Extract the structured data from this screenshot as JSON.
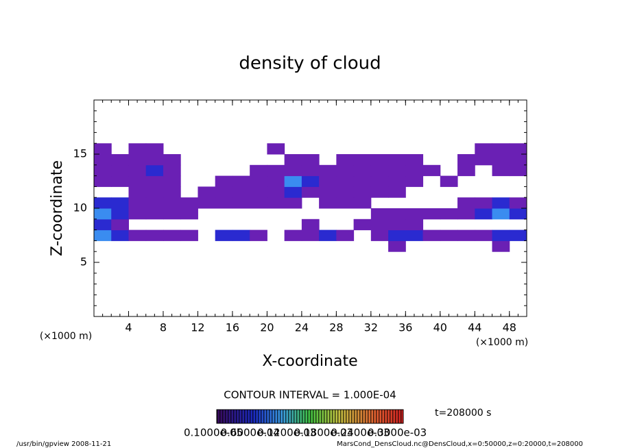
{
  "chart_data": {
    "type": "heatmap",
    "title": "density of cloud",
    "x_label": "X-coordinate",
    "y_label": "Z-coordinate",
    "x_unit": "(×1000 m)",
    "contour_interval": "CONTOUR INTERVAL = 1.000E-04",
    "time_label": "t=208000 s",
    "footer_left": "/usr/bin/gpview   2008-11-21",
    "footer_right": "MarsCond_DensCloud.nc@DensCloud,x=0:50000,z=0:20000,t=208000",
    "colorbar_labels": [
      "0.1000e-05",
      "0.6000e-04",
      "0.1200e-03",
      "0.1800e-03",
      "0.2400e-03",
      "0.3000e-03"
    ],
    "xlim": [
      0,
      50
    ],
    "ylim": [
      0,
      20
    ],
    "xticks": [
      4,
      8,
      12,
      16,
      20,
      24,
      28,
      32,
      36,
      40,
      44,
      48
    ],
    "yticks": [
      5,
      10,
      15
    ],
    "minor_tick_step": 1,
    "levels": [
      1e-05,
      5e-05,
      0.0001
    ],
    "colors": [
      "#6a20b4",
      "#2a2ad0",
      "#3a8cf0"
    ],
    "xbins": [
      0,
      2,
      4,
      6,
      8,
      10,
      12,
      14,
      16,
      18,
      20,
      22,
      24,
      26,
      28,
      30,
      32,
      34,
      36,
      38,
      40,
      42,
      44,
      46,
      48,
      50
    ],
    "zbins": [
      6,
      7,
      8,
      9,
      10,
      11,
      12,
      13,
      14,
      15,
      16
    ],
    "values": [
      [
        null,
        null,
        null,
        null,
        null,
        null,
        null,
        null,
        null,
        null,
        null,
        null,
        null,
        null,
        null,
        null,
        null,
        2e-05,
        null,
        null,
        null,
        null,
        null,
        2e-05,
        null
      ],
      [
        0.00012,
        6e-05,
        2e-05,
        2e-05,
        2e-05,
        2e-05,
        null,
        6e-05,
        6e-05,
        2e-05,
        null,
        2e-05,
        2e-05,
        6e-05,
        2e-05,
        null,
        2e-05,
        6e-05,
        6e-05,
        2e-05,
        2e-05,
        2e-05,
        2e-05,
        6e-05,
        6e-05
      ],
      [
        6e-05,
        2e-05,
        null,
        null,
        null,
        null,
        null,
        null,
        null,
        null,
        null,
        null,
        2e-05,
        null,
        null,
        2e-05,
        2e-05,
        2e-05,
        2e-05,
        null,
        null,
        null,
        null,
        null,
        null
      ],
      [
        0.00012,
        6e-05,
        2e-05,
        2e-05,
        2e-05,
        2e-05,
        null,
        null,
        null,
        null,
        null,
        null,
        null,
        null,
        null,
        null,
        2e-05,
        2e-05,
        2e-05,
        2e-05,
        2e-05,
        2e-05,
        6e-05,
        0.00012,
        6e-05
      ],
      [
        6e-05,
        6e-05,
        2e-05,
        2e-05,
        2e-05,
        2e-05,
        2e-05,
        2e-05,
        2e-05,
        2e-05,
        2e-05,
        2e-05,
        null,
        2e-05,
        2e-05,
        2e-05,
        null,
        null,
        null,
        null,
        null,
        2e-05,
        2e-05,
        6e-05,
        2e-05
      ],
      [
        null,
        null,
        2e-05,
        2e-05,
        2e-05,
        null,
        2e-05,
        2e-05,
        2e-05,
        2e-05,
        2e-05,
        6e-05,
        2e-05,
        2e-05,
        2e-05,
        2e-05,
        2e-05,
        2e-05,
        null,
        null,
        null,
        null,
        null,
        null,
        null
      ],
      [
        2e-05,
        2e-05,
        2e-05,
        2e-05,
        2e-05,
        null,
        null,
        2e-05,
        2e-05,
        2e-05,
        2e-05,
        0.00012,
        6e-05,
        2e-05,
        2e-05,
        2e-05,
        2e-05,
        2e-05,
        2e-05,
        null,
        2e-05,
        null,
        null,
        null,
        null
      ],
      [
        2e-05,
        2e-05,
        2e-05,
        6e-05,
        2e-05,
        null,
        null,
        null,
        null,
        2e-05,
        2e-05,
        2e-05,
        2e-05,
        2e-05,
        2e-05,
        2e-05,
        2e-05,
        2e-05,
        2e-05,
        2e-05,
        null,
        2e-05,
        null,
        2e-05,
        2e-05
      ],
      [
        2e-05,
        2e-05,
        2e-05,
        2e-05,
        2e-05,
        null,
        null,
        null,
        null,
        null,
        null,
        2e-05,
        2e-05,
        null,
        2e-05,
        2e-05,
        2e-05,
        2e-05,
        2e-05,
        null,
        null,
        2e-05,
        2e-05,
        2e-05,
        2e-05
      ],
      [
        2e-05,
        null,
        2e-05,
        2e-05,
        null,
        null,
        null,
        null,
        null,
        null,
        2e-05,
        null,
        null,
        null,
        null,
        null,
        null,
        null,
        null,
        null,
        null,
        null,
        2e-05,
        2e-05,
        2e-05
      ]
    ]
  }
}
